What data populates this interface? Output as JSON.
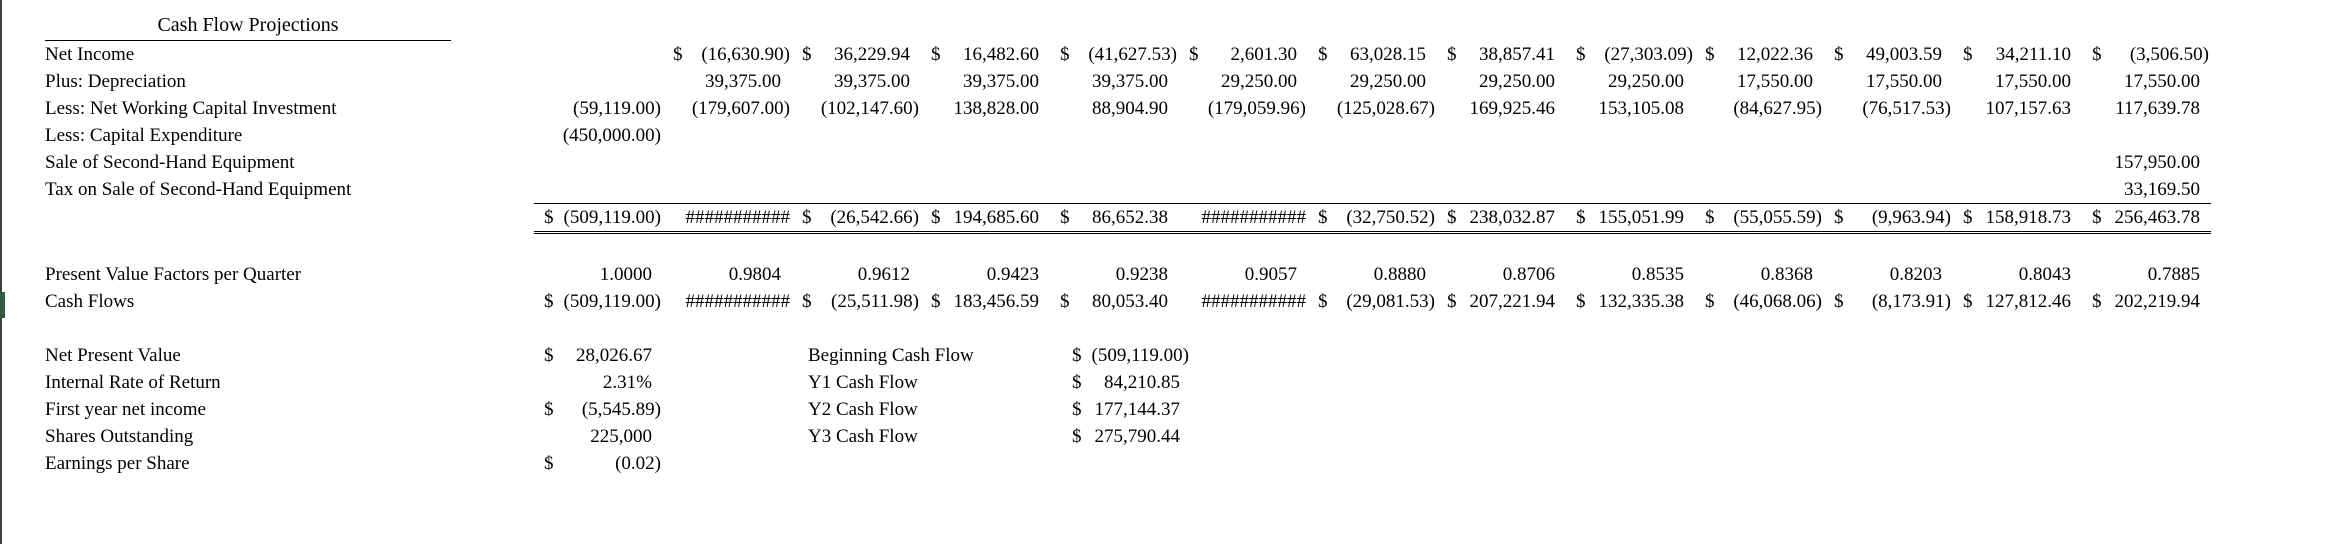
{
  "title": "Cash Flow Projections",
  "table": {
    "rows": [
      {
        "label": "Net Income",
        "cells": [
          "",
          "$ (16,630.90)",
          "$ 36,229.94",
          "$ 16,482.60",
          "$ (41,627.53)",
          "$ 2,601.30",
          "$ 63,028.15",
          "$ 38,857.41",
          "$ (27,303.09)",
          "$ 12,022.36",
          "$ 49,003.59",
          "$ 34,211.10",
          "$ (3,506.50)"
        ]
      },
      {
        "label": "Plus: Depreciation",
        "cells": [
          "",
          "39,375.00",
          "39,375.00",
          "39,375.00",
          "39,375.00",
          "29,250.00",
          "29,250.00",
          "29,250.00",
          "29,250.00",
          "17,550.00",
          "17,550.00",
          "17,550.00",
          "17,550.00"
        ]
      },
      {
        "label": "Less: Net Working Capital Investment",
        "cells": [
          "(59,119.00)",
          "(179,607.00)",
          "(102,147.60)",
          "138,828.00",
          "88,904.90",
          "(179,059.96)",
          "(125,028.67)",
          "169,925.46",
          "153,105.08",
          "(84,627.95)",
          "(76,517.53)",
          "107,157.63",
          "117,639.78"
        ]
      },
      {
        "label": "Less: Capital Expenditure",
        "cells": [
          "(450,000.00)",
          "",
          "",
          "",
          "",
          "",
          "",
          "",
          "",
          "",
          "",
          "",
          ""
        ]
      },
      {
        "label": "Sale of Second-Hand Equipment",
        "cells": [
          "",
          "",
          "",
          "",
          "",
          "",
          "",
          "",
          "",
          "",
          "",
          "",
          "157,950.00"
        ]
      },
      {
        "label": "Tax on Sale of Second-Hand Equipment",
        "cells": [
          "",
          "",
          "",
          "",
          "",
          "",
          "",
          "",
          "",
          "",
          "",
          "",
          "33,169.50"
        ]
      },
      {
        "label": "",
        "total": true,
        "cells": [
          "$ (509,119.00)",
          "###########",
          "$ (26,542.66)",
          "$ 194,685.60",
          "$ 86,652.38",
          "###########",
          "$ (32,750.52)",
          "$ 238,032.87",
          "$ 155,051.99",
          "$ (55,055.59)",
          "$ (9,963.94)",
          "$ 158,918.73",
          "$ 256,463.78"
        ]
      },
      {
        "blank": true
      },
      {
        "label": "Present Value Factors per Quarter",
        "cells": [
          "1.0000",
          "0.9804",
          "0.9612",
          "0.9423",
          "0.9238",
          "0.9057",
          "0.8880",
          "0.8706",
          "0.8535",
          "0.8368",
          "0.8203",
          "0.8043",
          "0.7885"
        ]
      },
      {
        "label": "Cash Flows",
        "cells": [
          "$ (509,119.00)",
          "###########",
          "$ (25,511.98)",
          "$ 183,456.59",
          "$ 80,053.40",
          "###########",
          "$ (29,081.53)",
          "$ 207,221.94",
          "$ 132,335.38",
          "$ (46,068.06)",
          "$ (8,173.91)",
          "$ 127,812.46",
          "$ 202,219.94"
        ]
      },
      {
        "blank": true
      }
    ]
  },
  "summary": {
    "rows": [
      {
        "label": "Net Present Value",
        "value": "$ 28,026.67",
        "rlabel": "Beginning Cash Flow",
        "rvalue": "$ (509,119.00)"
      },
      {
        "label": "Internal Rate of Return",
        "value": "2.31%",
        "rlabel": "Y1 Cash Flow",
        "rvalue": "$ 84,210.85"
      },
      {
        "label": "First year net income",
        "value": "$ (5,545.89)",
        "rlabel": "Y2 Cash Flow",
        "rvalue": "$ 177,144.37"
      },
      {
        "label": "Shares Outstanding",
        "value": "225,000",
        "rlabel": "Y3 Cash Flow",
        "rvalue": "$ 275,790.44"
      },
      {
        "label": "Earnings per Share",
        "value": "$ (0.02)",
        "rlabel": "",
        "rvalue": ""
      }
    ]
  }
}
